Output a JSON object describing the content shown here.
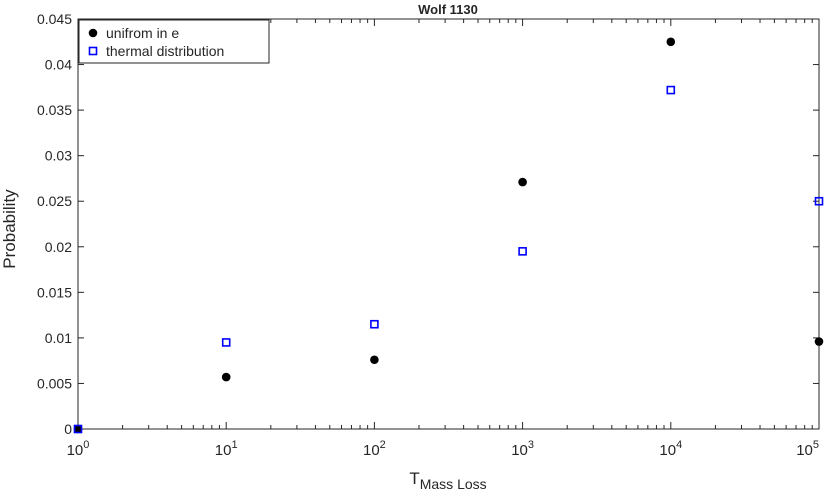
{
  "chart_data": {
    "type": "scatter",
    "title": "Wolf 1130",
    "xlabel": "T",
    "xlabel_subscript": "Mass Loss",
    "ylabel": "Probability",
    "x_scale": "log",
    "xlim": [
      1,
      100000
    ],
    "ylim": [
      0,
      0.045
    ],
    "x_tick_labels": [
      {
        "value": 1,
        "base": "10",
        "exp": "0"
      },
      {
        "value": 10,
        "base": "10",
        "exp": "1"
      },
      {
        "value": 100,
        "base": "10",
        "exp": "2"
      },
      {
        "value": 1000,
        "base": "10",
        "exp": "3"
      },
      {
        "value": 10000,
        "base": "10",
        "exp": "4"
      },
      {
        "value": 100000,
        "base": "10",
        "exp": "5"
      }
    ],
    "y_ticks": [
      0,
      0.005,
      0.01,
      0.015,
      0.02,
      0.025,
      0.03,
      0.035,
      0.04,
      0.045
    ],
    "y_tick_labels": [
      "0",
      "0.005",
      "0.01",
      "0.015",
      "0.02",
      "0.025",
      "0.03",
      "0.035",
      "0.04",
      "0.045"
    ],
    "grid": false,
    "legend_position": "top-left",
    "series": [
      {
        "name": "unifrom in e",
        "marker": "filled-circle",
        "color": "#000000",
        "x": [
          1,
          10,
          100,
          1000,
          10000,
          100000
        ],
        "y": [
          0,
          0.0057,
          0.0076,
          0.0271,
          0.0425,
          0.0096
        ]
      },
      {
        "name": "thermal distribution",
        "marker": "open-square",
        "color": "#0000ff",
        "x": [
          1,
          10,
          100,
          1000,
          10000,
          100000
        ],
        "y": [
          0,
          0.0095,
          0.0115,
          0.0195,
          0.0372,
          0.025
        ]
      }
    ]
  }
}
